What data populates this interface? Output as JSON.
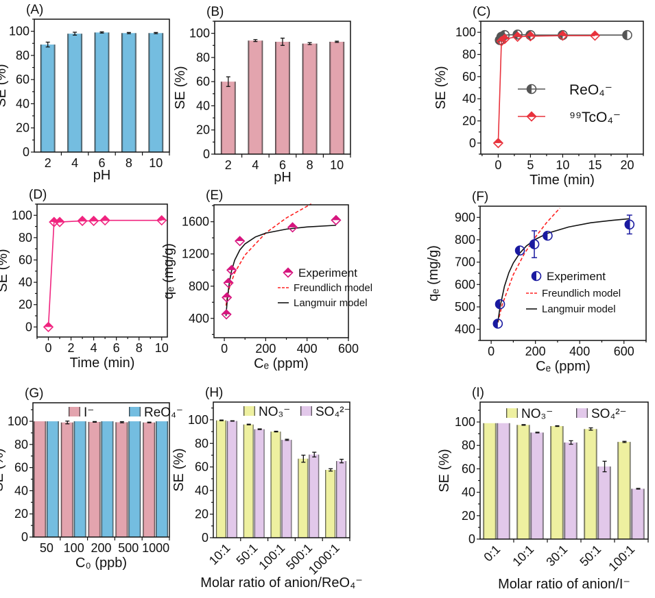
{
  "chart_data": [
    {
      "panel_label": "(A)",
      "type": "bar",
      "categories": [
        "2",
        "4",
        "6",
        "8",
        "10"
      ],
      "series": [
        {
          "values": [
            89,
            98,
            99,
            98.5,
            98.5
          ],
          "errors": [
            2,
            1.2,
            0.5,
            0.5,
            0.5
          ],
          "color": "#74bde0"
        }
      ],
      "xlabel": "pH",
      "ylabel": "SE (%)",
      "ylim": [
        0,
        110
      ],
      "yticks": [
        0,
        20,
        40,
        60,
        80,
        100
      ]
    },
    {
      "panel_label": "(B)",
      "type": "bar",
      "categories": [
        "2",
        "4",
        "6",
        "8",
        "10"
      ],
      "series": [
        {
          "values": [
            60,
            94,
            93,
            91.5,
            93
          ],
          "errors": [
            4,
            0.8,
            3,
            0.8,
            0.5
          ],
          "color": "#e3a4ae"
        }
      ],
      "xlabel": "pH",
      "ylabel": "SE (%)",
      "ylim": [
        0,
        110
      ],
      "yticks": [
        0,
        20,
        40,
        60,
        80,
        100
      ]
    },
    {
      "panel_label": "(C)",
      "type": "line",
      "xlabel": "Time (min)",
      "ylabel": "SE (%)",
      "xlim": [
        -2.7,
        22.5
      ],
      "ylim": [
        -10,
        110
      ],
      "xticks": [
        0,
        5,
        10,
        15,
        20
      ],
      "yticks": [
        0,
        20,
        40,
        60,
        80,
        100
      ],
      "legend": "center-right",
      "series": [
        {
          "name": "ReO₄⁻",
          "marker": "circle",
          "color": "#555555",
          "x": [
            0.25,
            0.5,
            1,
            3,
            5,
            10,
            20
          ],
          "y": [
            93,
            96,
            97.5,
            98,
            97.5,
            97.5,
            97.5
          ]
        },
        {
          "name": "⁹⁹TcO₄⁻",
          "marker": "diamond",
          "color": "#e8323c",
          "x": [
            0,
            0.5,
            1,
            3,
            5,
            10,
            15
          ],
          "y": [
            0,
            92,
            94,
            96,
            96.5,
            97,
            97
          ]
        }
      ]
    },
    {
      "panel_label": "(D)",
      "type": "line",
      "xlabel": "Time (min)",
      "ylabel": "SE  (%)",
      "xlim": [
        -1,
        10.5
      ],
      "ylim": [
        -9,
        110
      ],
      "xticks": [
        0,
        2,
        4,
        6,
        8,
        10
      ],
      "yticks": [
        0,
        20,
        40,
        60,
        80,
        100
      ],
      "series": [
        {
          "marker": "diamond",
          "color": "#f0247f",
          "x": [
            0,
            0.5,
            1,
            3,
            4,
            5,
            10
          ],
          "y": [
            0,
            94,
            94,
            95,
            95,
            95.5,
            95.5
          ]
        }
      ]
    },
    {
      "panel_label": "(E)",
      "type": "scatter",
      "xlabel": "Cₑ (ppm)",
      "ylabel": "qₑ (mg/g)",
      "xlim": [
        -50,
        600
      ],
      "ylim": [
        160,
        1810
      ],
      "xticks": [
        0,
        200,
        400,
        600
      ],
      "yticks": [
        400,
        800,
        1200,
        1600
      ],
      "legend": "center-right",
      "series": [
        {
          "name": "Experiment",
          "marker": "diamond",
          "color": "#d6157e",
          "x": [
            10,
            12,
            20,
            35,
            75,
            330,
            540
          ],
          "y": [
            450,
            660,
            840,
            1000,
            1360,
            1530,
            1620
          ]
        },
        {
          "name": "Freundlich model",
          "style": "dashed",
          "color": "#ff2020",
          "x": [
            8,
            15,
            25,
            50,
            100,
            200,
            300,
            420
          ],
          "y": [
            559,
            675,
            785,
            966,
            1187,
            1460,
            1647,
            1821
          ]
        },
        {
          "name": "Langmuir model",
          "style": "solid",
          "color": "#111111",
          "x": [
            8,
            15,
            25,
            35,
            50,
            75,
            100,
            150,
            200,
            300,
            400,
            540
          ],
          "y": [
            429,
            653,
            858,
            991,
            1122,
            1250,
            1325,
            1411,
            1458,
            1508,
            1535,
            1556
          ]
        }
      ]
    },
    {
      "panel_label": "(F)",
      "type": "scatter",
      "xlabel": "Cₑ (ppm)",
      "ylabel": "qₑ (mg/g)",
      "xlim": [
        -50,
        700
      ],
      "ylim": [
        350,
        950
      ],
      "xticks": [
        0,
        200,
        400,
        600
      ],
      "yticks": [
        400,
        500,
        600,
        700,
        800,
        900
      ],
      "legend": "center-right",
      "series": [
        {
          "name": "Experiment",
          "marker": "circle",
          "color": "#1a1aa0",
          "x": [
            30,
            40,
            130,
            195,
            255,
            625
          ],
          "y": [
            425,
            512,
            752,
            780,
            818,
            868
          ],
          "errors": [
            0,
            0,
            0,
            60,
            0,
            42
          ]
        },
        {
          "name": "Freundlich model",
          "style": "dashed",
          "color": "#ff2020",
          "x": [
            30,
            50,
            100,
            150,
            200,
            250,
            310
          ],
          "y": [
            430,
            510,
            644,
            738,
            812,
            876,
            941
          ]
        },
        {
          "name": "Langmuir model",
          "style": "solid",
          "color": "#111111",
          "x": [
            30,
            40,
            60,
            80,
            100,
            130,
            160,
            200,
            255,
            350,
            450,
            550,
            625
          ],
          "y": [
            431,
            499,
            592,
            653,
            696,
            741,
            773,
            802,
            829,
            857,
            876,
            887,
            894
          ]
        }
      ]
    },
    {
      "panel_label": "(G)",
      "type": "bar",
      "categories": [
        "50",
        "100",
        "200",
        "500",
        "1000"
      ],
      "series": [
        {
          "name": "I⁻",
          "values": [
            100,
            99,
            99.5,
            99.2,
            99
          ],
          "errors": [
            0,
            1.2,
            0.3,
            0.5,
            0.3
          ],
          "color": "#e3a4ae"
        },
        {
          "name": "ReO₄⁻",
          "values": [
            100,
            100,
            100,
            100,
            100
          ],
          "errors": [
            0,
            0,
            0,
            0,
            0
          ],
          "color": "#74bde0"
        }
      ],
      "xlabel": "C₀ (ppb)",
      "ylabel": "SE (%)",
      "ylim": [
        0,
        116
      ],
      "yticks": [
        0,
        20,
        40,
        60,
        80,
        100
      ],
      "legend": "top"
    },
    {
      "panel_label": "(H)",
      "type": "bar",
      "categories": [
        "10:1",
        "50:1",
        "100:1",
        "500:1",
        "1000:1"
      ],
      "series": [
        {
          "name": "NO₃⁻",
          "values": [
            99.5,
            96,
            90,
            67,
            57.5
          ],
          "errors": [
            0.3,
            0.3,
            0.3,
            3,
            1
          ],
          "color": "#eef0a0"
        },
        {
          "name": "SO₄²⁻",
          "values": [
            99,
            92,
            83,
            70.5,
            65
          ],
          "errors": [
            0.2,
            0.3,
            0.5,
            2,
            1.5
          ],
          "color": "#e2c8ea"
        }
      ],
      "xlabel": "Molar ratio of anion/ReO₄⁻",
      "ylabel": "SE (%)",
      "ylim": [
        0,
        115
      ],
      "yticks": [
        0,
        20,
        40,
        60,
        80,
        100
      ],
      "legend": "top"
    },
    {
      "panel_label": "(I)",
      "type": "bar",
      "categories": [
        "0:1",
        "10:1",
        "30:1",
        "50:1",
        "100:1"
      ],
      "series": [
        {
          "name": "NO₃⁻",
          "values": [
            99,
            97.5,
            96.5,
            94,
            83
          ],
          "errors": [
            0,
            0.3,
            0.3,
            1,
            0.5
          ],
          "color": "#eef0a0"
        },
        {
          "name": "SO₄²⁻",
          "values": [
            99,
            91,
            82.5,
            62,
            43
          ],
          "errors": [
            0,
            0.3,
            1.5,
            4.5,
            0.3
          ],
          "color": "#e2c8ea"
        }
      ],
      "xlabel": "Molar ratio of anion/I⁻",
      "ylabel": "SE (%)",
      "ylim": [
        0,
        117
      ],
      "yticks": [
        0,
        20,
        40,
        60,
        80,
        100
      ],
      "legend": "top"
    }
  ]
}
